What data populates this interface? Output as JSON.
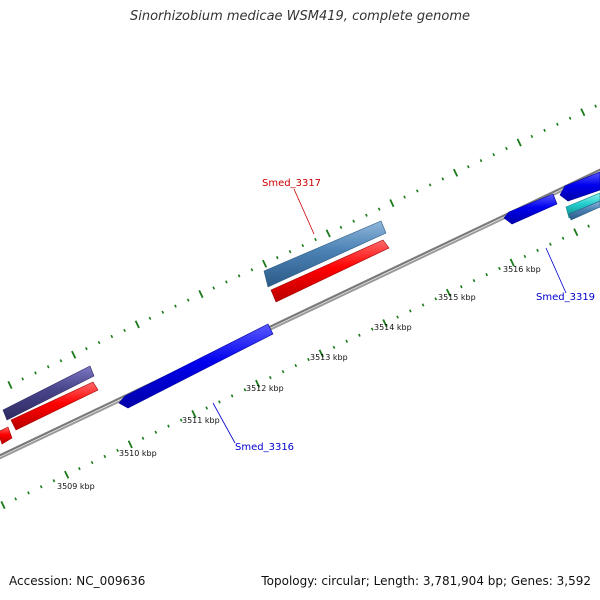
{
  "title": "Sinorhizobium medicae WSM419, complete genome",
  "footer": {
    "accession": "Accession: NC_009636",
    "summary": "Topology: circular; Length: 3,781,904 bp; Genes: 3,592"
  },
  "scale_labels": [
    "3509 kbp",
    "3510 kbp",
    "3511 kbp",
    "3512 kbp",
    "3513 kbp",
    "3514 kbp",
    "3515 kbp",
    "3516 kbp"
  ],
  "gene_labels": [
    {
      "name": "Smed_3317",
      "color": "#cc0000"
    },
    {
      "name": "Smed_3319",
      "color": "#0000cc"
    },
    {
      "name": "Smed_3316",
      "color": "#0000cc"
    }
  ],
  "colors": {
    "backbone": "#808080",
    "scale": "#1a7a1a",
    "cds_red": "#ff0000",
    "cds_blue": "#0000ee",
    "cds_steel": "#4a82b4",
    "cds_slate": "#48448a",
    "cds_cyan": "#22cccc"
  }
}
